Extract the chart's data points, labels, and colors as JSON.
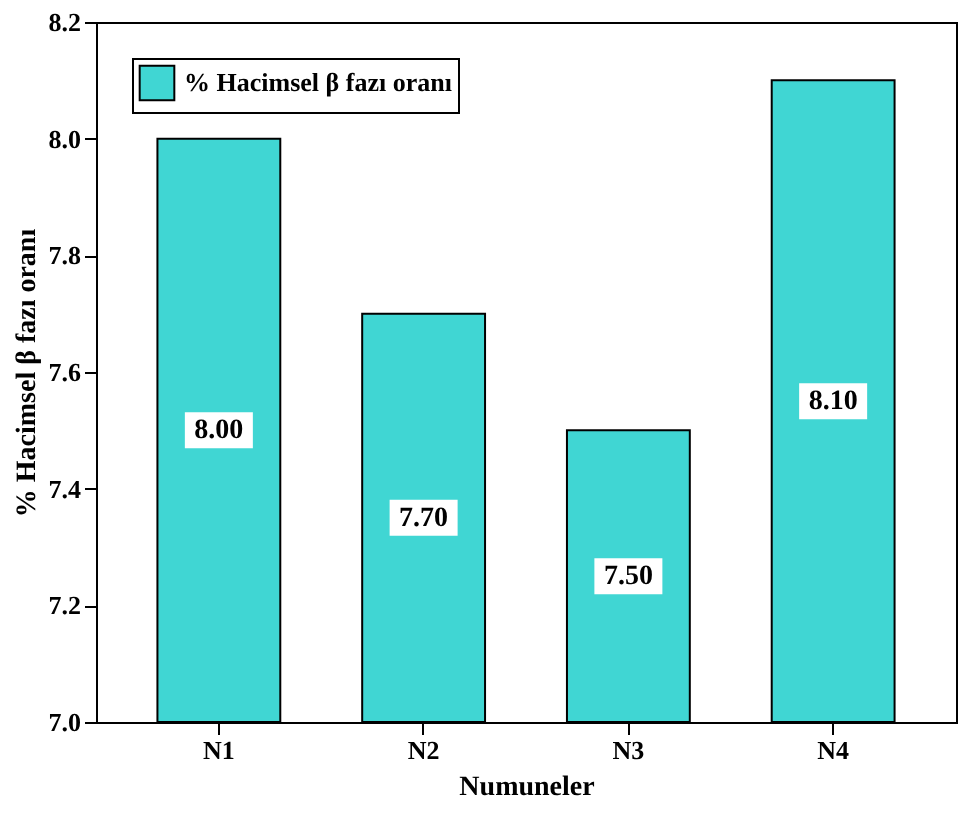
{
  "chart_data": {
    "type": "bar",
    "xlabel": "Numuneler",
    "ylabel": "% Hacimsel β fazı oranı",
    "categories": [
      "N1",
      "N2",
      "N3",
      "N4"
    ],
    "series": [
      {
        "name": "% Hacimsel β fazı oranı",
        "color": "#40d6d3",
        "values": [
          8.0,
          7.7,
          7.5,
          8.1
        ]
      }
    ],
    "value_labels": [
      "8.00",
      "7.70",
      "7.50",
      "8.10"
    ],
    "ylim": [
      7.0,
      8.2
    ],
    "yticks": [
      {
        "value": 7.0,
        "label": "7.0"
      },
      {
        "value": 7.2,
        "label": "7.2"
      },
      {
        "value": 7.4,
        "label": "7.4"
      },
      {
        "value": 7.6,
        "label": "7.6"
      },
      {
        "value": 7.8,
        "label": "7.8"
      },
      {
        "value": 8.0,
        "label": "8.0"
      },
      {
        "value": 8.2,
        "label": "8.2"
      }
    ],
    "legend": "top left",
    "grid": false
  }
}
